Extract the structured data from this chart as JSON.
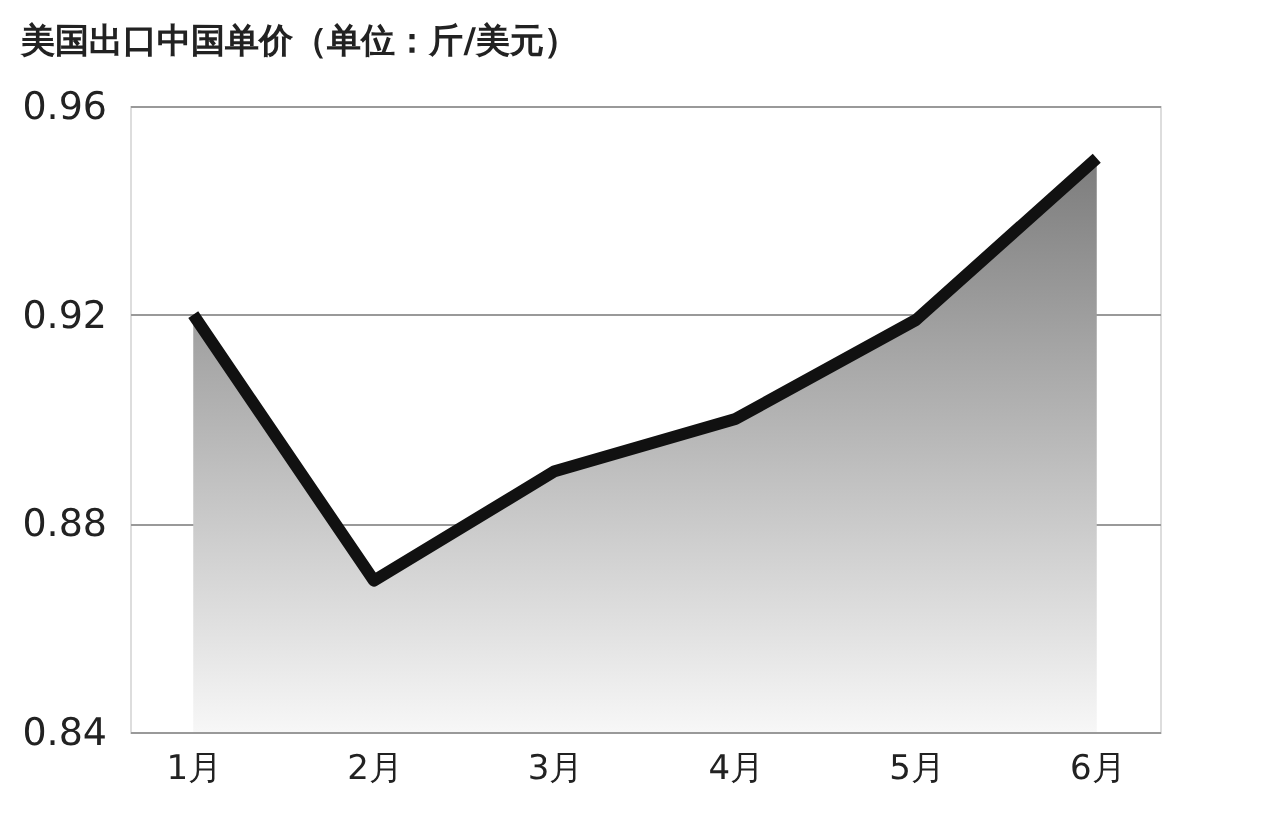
{
  "chart_data": {
    "type": "area",
    "title": "美国出口中国单价（单位：斤/美元）",
    "categories": [
      "1月",
      "2月",
      "3月",
      "4月",
      "5月",
      "6月"
    ],
    "series": [
      {
        "color": "#111111",
        "values": [
          0.92,
          0.869,
          0.89,
          0.9,
          0.919,
          0.95
        ]
      }
    ],
    "ylim": [
      0.84,
      0.96
    ],
    "yticks": [
      0.84,
      0.88,
      0.92,
      0.96
    ],
    "grid": "y"
  }
}
